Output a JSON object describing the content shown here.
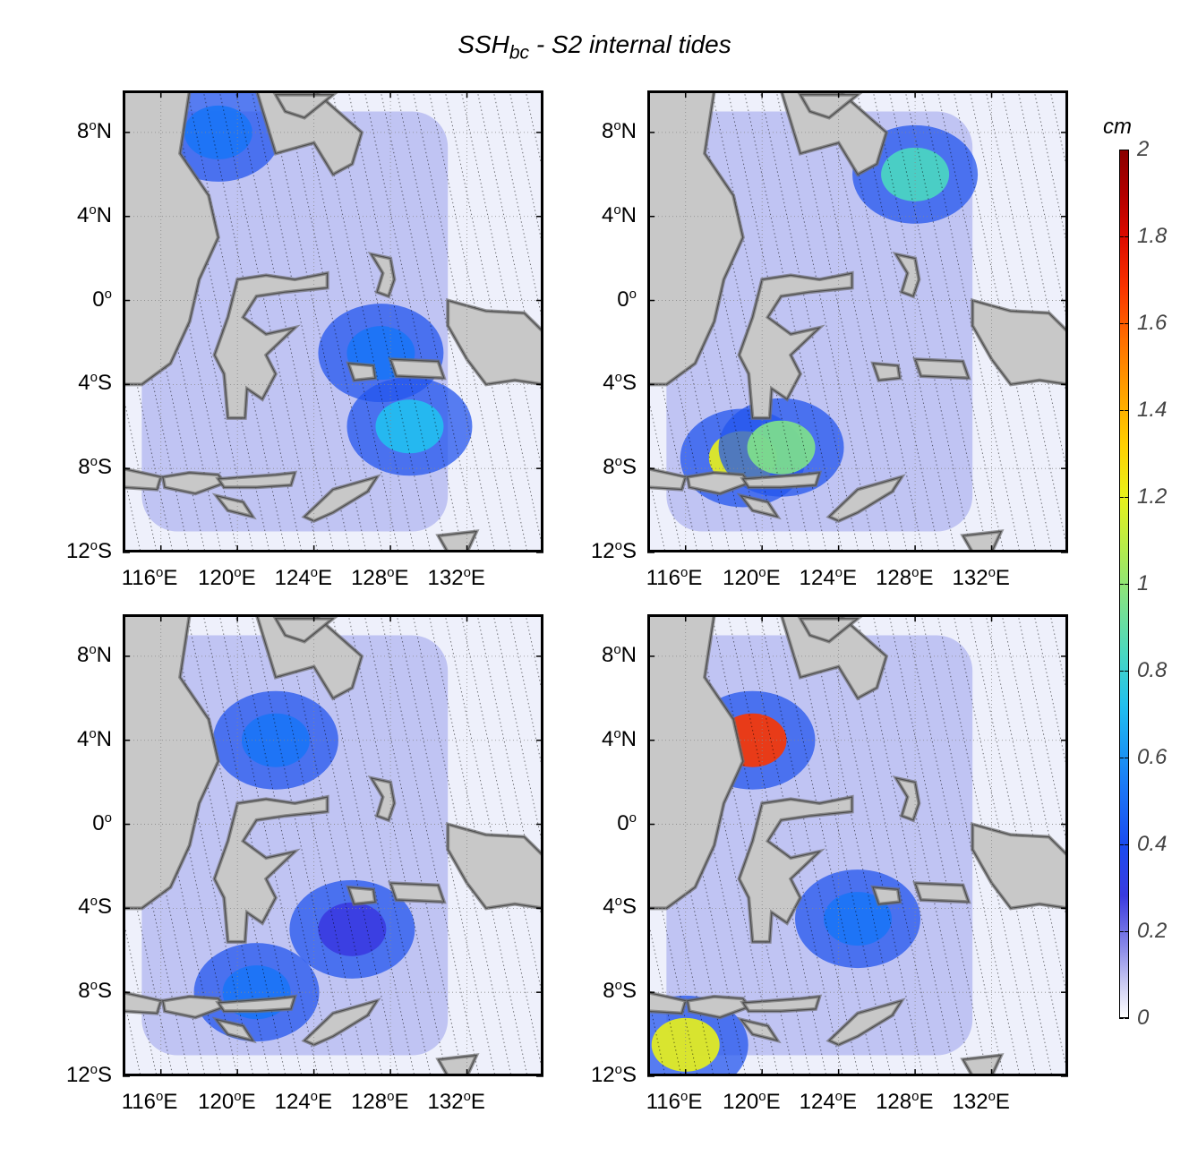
{
  "title": {
    "main": "SSH",
    "sub": "bc",
    "rest": " - S2 internal tides"
  },
  "colorbar": {
    "unit": "cm",
    "range": [
      0,
      2
    ],
    "labels": [
      "0",
      "0.2",
      "0.4",
      "0.6",
      "0.8",
      "1",
      "1.2",
      "1.4",
      "1.6",
      "1.8",
      "2"
    ]
  },
  "map_axes": {
    "lon_range": [
      114,
      136
    ],
    "lat_range": [
      -12,
      10
    ],
    "lon_ticks": [
      {
        "num": "116",
        "unit": "E"
      },
      {
        "num": "120",
        "unit": "E"
      },
      {
        "num": "124",
        "unit": "E"
      },
      {
        "num": "128",
        "unit": "E"
      },
      {
        "num": "132",
        "unit": "E"
      }
    ],
    "lat_ticks": [
      {
        "num": "8",
        "unit": "N"
      },
      {
        "num": "4",
        "unit": "N"
      },
      {
        "num": "0",
        "unit": ""
      },
      {
        "num": "4",
        "unit": "S"
      },
      {
        "num": "8",
        "unit": "S"
      },
      {
        "num": "12",
        "unit": "S"
      }
    ]
  },
  "panels": [
    {
      "id": "top-left",
      "hotspots": [
        {
          "lon": 129,
          "lat": -6,
          "amp": 0.6
        },
        {
          "lon": 119,
          "lat": 8,
          "amp": 0.45
        },
        {
          "lon": 127.5,
          "lat": -2.5,
          "amp": 0.55
        }
      ]
    },
    {
      "id": "top-right",
      "hotspots": [
        {
          "lon": 119,
          "lat": -7.5,
          "amp": 1.2
        },
        {
          "lon": 121,
          "lat": -7,
          "amp": 1.1
        },
        {
          "lon": 128,
          "lat": 6,
          "amp": 0.8
        }
      ]
    },
    {
      "id": "bottom-left",
      "hotspots": [
        {
          "lon": 122,
          "lat": 4,
          "amp": 0.5
        },
        {
          "lon": 121,
          "lat": -8,
          "amp": 0.5
        },
        {
          "lon": 126,
          "lat": -5,
          "amp": 0.35
        }
      ]
    },
    {
      "id": "bottom-right",
      "hotspots": [
        {
          "lon": 119.5,
          "lat": 4,
          "amp": 1.65
        },
        {
          "lon": 116,
          "lat": -10.5,
          "amp": 1.2
        },
        {
          "lon": 125,
          "lat": -4.5,
          "amp": 0.5
        }
      ]
    }
  ]
}
